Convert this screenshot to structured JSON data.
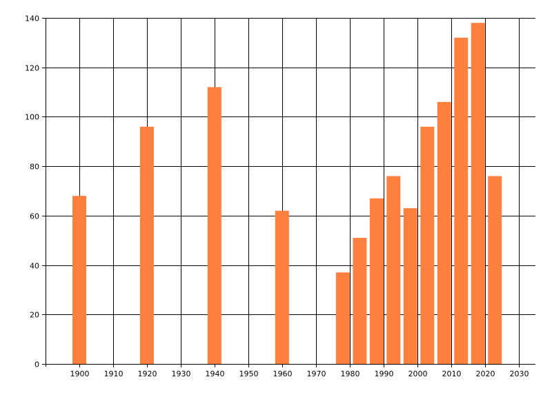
{
  "chart_data": {
    "type": "bar",
    "title": "",
    "xlabel": "",
    "ylabel": "",
    "x": [
      1900,
      1920,
      1940,
      1960,
      1978,
      1983,
      1988,
      1993,
      1998,
      2003,
      2008,
      2013,
      2018,
      2023
    ],
    "values": [
      68,
      96,
      112,
      62,
      37,
      51,
      67,
      76,
      63,
      96,
      106,
      132,
      138,
      76
    ],
    "xlim": [
      1890,
      2035
    ],
    "ylim": [
      0,
      140
    ],
    "xticks": [
      1900,
      1910,
      1920,
      1930,
      1940,
      1950,
      1960,
      1970,
      1980,
      1990,
      2000,
      2010,
      2020,
      2030
    ],
    "yticks": [
      0,
      20,
      40,
      60,
      80,
      100,
      120,
      140
    ],
    "grid": true,
    "legend": "none",
    "bar_color": "#ff7f3f"
  }
}
